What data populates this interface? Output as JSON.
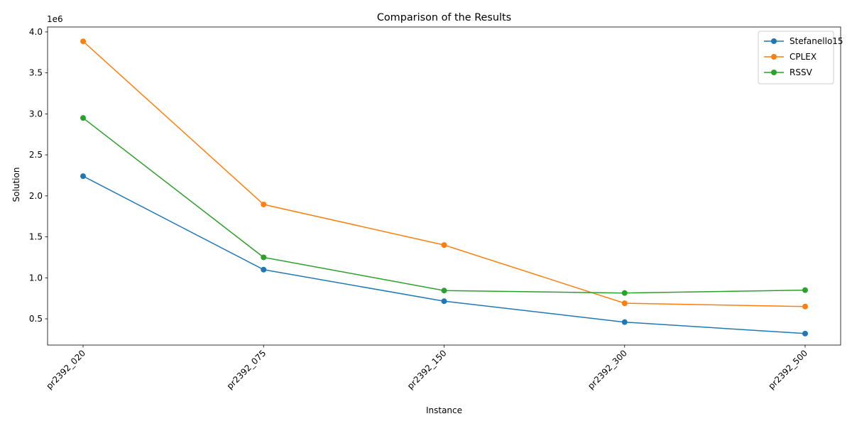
{
  "chart_data": {
    "type": "line",
    "title": "Comparison of the Results",
    "xlabel": "Instance",
    "ylabel": "Solution",
    "y_offset_label": "1e6",
    "categories": [
      "pr2392_020",
      "pr2392_075",
      "pr2392_150",
      "pr2392_300",
      "pr2392_500"
    ],
    "y_ticks": [
      "0.5",
      "1.0",
      "1.5",
      "2.0",
      "2.5",
      "3.0",
      "3.5",
      "4.0"
    ],
    "y_tick_values": [
      500000,
      1000000,
      1500000,
      2000000,
      2500000,
      3000000,
      3500000,
      4000000
    ],
    "ylim": [
      180000,
      4060000
    ],
    "legend_position": "top-right",
    "grid": false,
    "series": [
      {
        "name": "Stefanello15",
        "color": "#1f77b4",
        "values": [
          2240000,
          1100000,
          715000,
          460000,
          320000
        ]
      },
      {
        "name": "CPLEX",
        "color": "#ff7f0e",
        "values": [
          3885000,
          1895000,
          1400000,
          690000,
          650000
        ]
      },
      {
        "name": "RSSV",
        "color": "#2ca02c",
        "values": [
          2950000,
          1250000,
          845000,
          815000,
          850000
        ]
      }
    ]
  }
}
